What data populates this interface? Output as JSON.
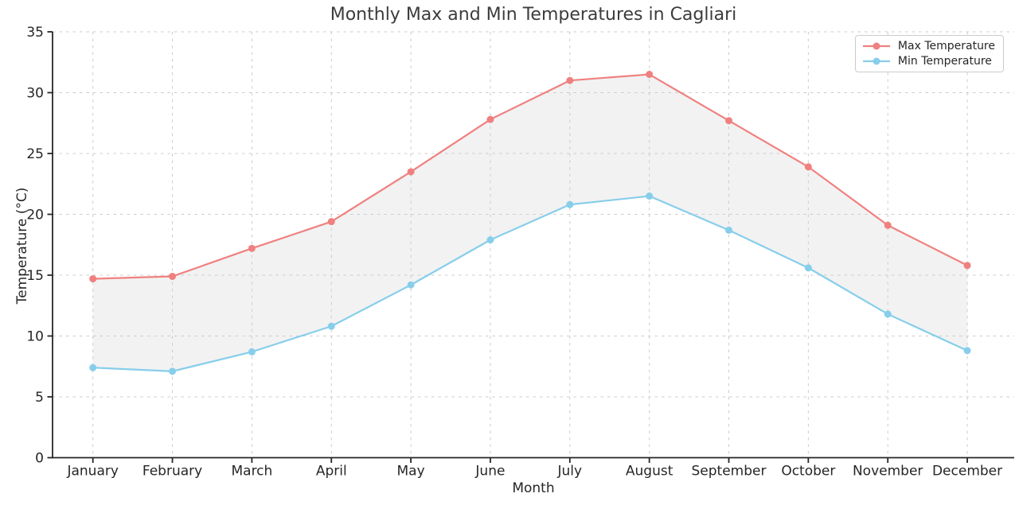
{
  "chart_data": {
    "type": "line",
    "title": "Monthly Max and Min Temperatures in Cagliari",
    "xlabel": "Month",
    "ylabel": "Temperature (°C)",
    "categories": [
      "January",
      "February",
      "March",
      "April",
      "May",
      "June",
      "July",
      "August",
      "September",
      "October",
      "November",
      "December"
    ],
    "series": [
      {
        "name": "Max Temperature",
        "color": "#F08080",
        "marker": "circle",
        "values": [
          14.7,
          14.9,
          17.2,
          19.4,
          23.5,
          27.8,
          31.0,
          31.5,
          27.7,
          23.9,
          19.1,
          15.8
        ]
      },
      {
        "name": "Min Temperature",
        "color": "#87CEEB",
        "marker": "circle",
        "values": [
          7.4,
          7.1,
          8.7,
          10.8,
          14.2,
          17.9,
          20.8,
          21.5,
          18.7,
          15.6,
          11.8,
          8.8
        ]
      }
    ],
    "ylim": [
      0,
      35
    ],
    "yticks": [
      0,
      5,
      10,
      15,
      20,
      25,
      30,
      35
    ],
    "grid": "dashed",
    "grid_color": "#cccccc",
    "axis_color": "#262626",
    "fill_between_color": "#f2f2f2",
    "legend_position": "upper right"
  }
}
